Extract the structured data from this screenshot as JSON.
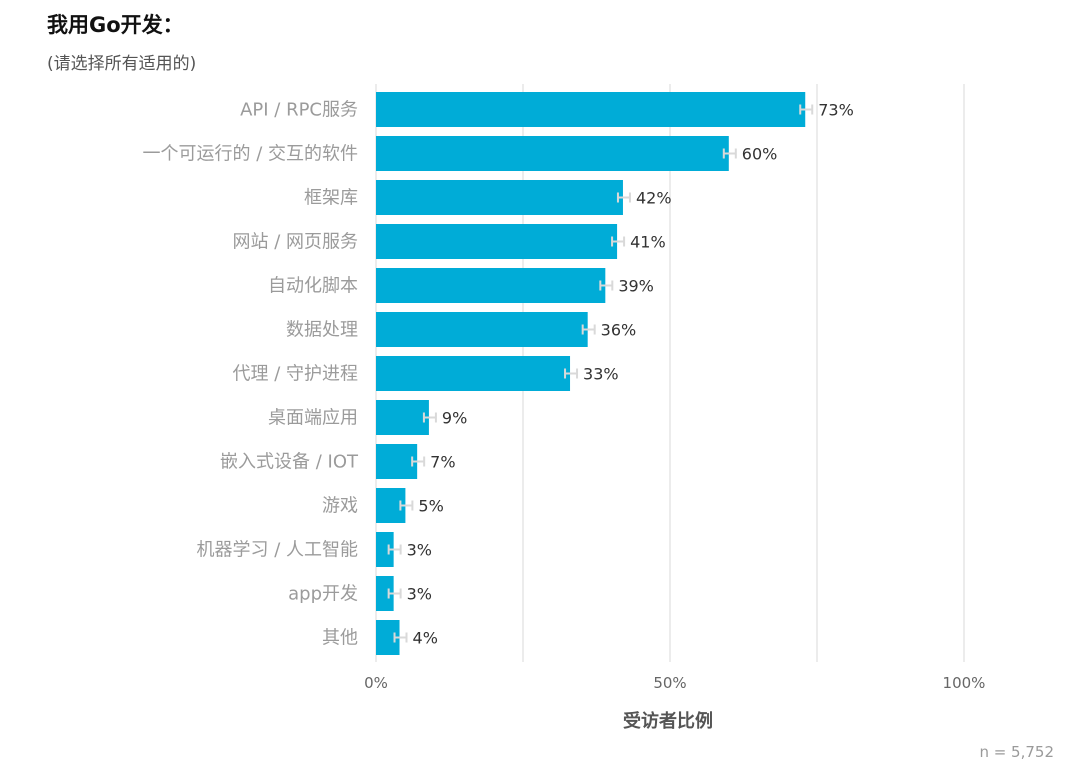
{
  "header": {
    "title": "我用Go开发：",
    "subtitle": "(请选择所有适用的)"
  },
  "footer": {
    "sample_note": "n =   5,752"
  },
  "colors": {
    "bar": "#00ACD7",
    "grid": "#E6E6E6",
    "error_bar": "#D9D9D9"
  },
  "chart_data": {
    "type": "bar",
    "orientation": "horizontal",
    "title": "我用Go开发：",
    "subtitle": "(请选择所有适用的)",
    "xlabel": "受访者比例",
    "ylabel": "",
    "xlim": [
      0,
      100
    ],
    "x_ticks": [
      0,
      50,
      100
    ],
    "x_tick_labels": [
      "0%",
      "50%",
      "100%"
    ],
    "grid": true,
    "error_bars": true,
    "categories": [
      "API / RPC服务",
      "一个可运行的 / 交互的软件",
      "框架库",
      "网站 / 网页服务",
      "自动化脚本",
      "数据处理",
      "代理 / 守护进程",
      "桌面端应用",
      "嵌入式设备 / IOT",
      "游戏",
      "机器学习 / 人工智能",
      "app开发",
      "其他"
    ],
    "values": [
      73,
      60,
      42,
      41,
      39,
      36,
      33,
      9,
      7,
      5,
      3,
      3,
      4
    ],
    "value_labels": [
      "73%",
      "60%",
      "42%",
      "41%",
      "39%",
      "36%",
      "33%",
      "9%",
      "7%",
      "5%",
      "3%",
      "3%",
      "4%"
    ]
  }
}
